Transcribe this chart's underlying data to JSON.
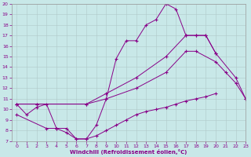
{
  "background_color": "#c8e8e8",
  "line_color": "#880088",
  "xlabel": "Windchill (Refroidissement éolien,°C)",
  "xlim": [
    -0.5,
    23
  ],
  "ylim": [
    7,
    20
  ],
  "yticks": [
    7,
    8,
    9,
    10,
    11,
    12,
    13,
    14,
    15,
    16,
    17,
    18,
    19,
    20
  ],
  "xticks": [
    0,
    1,
    2,
    3,
    4,
    5,
    6,
    7,
    8,
    9,
    10,
    11,
    12,
    13,
    14,
    15,
    16,
    17,
    18,
    19,
    20,
    21,
    22,
    23
  ],
  "series": [
    {
      "x": [
        0,
        1,
        2,
        3,
        4,
        5,
        6,
        7,
        8,
        9,
        10,
        11,
        12,
        13,
        14,
        15,
        16,
        17,
        18,
        19,
        20
      ],
      "y": [
        10.5,
        9.5,
        10.2,
        10.5,
        8.2,
        8.2,
        7.2,
        7.2,
        8.5,
        11.0,
        14.8,
        16.5,
        16.5,
        18.0,
        18.5,
        20.0,
        19.5,
        17.0,
        17.0,
        17.0,
        15.3
      ]
    },
    {
      "x": [
        0,
        2,
        7,
        9,
        12,
        15,
        17,
        18,
        19,
        20,
        22,
        23
      ],
      "y": [
        10.5,
        10.5,
        10.5,
        11.5,
        13.0,
        15.0,
        17.0,
        17.0,
        17.0,
        15.3,
        13.0,
        11.0
      ]
    },
    {
      "x": [
        0,
        2,
        7,
        9,
        12,
        15,
        17,
        18,
        20,
        21,
        22,
        23
      ],
      "y": [
        10.5,
        10.5,
        10.5,
        11.0,
        12.0,
        13.5,
        15.5,
        15.5,
        14.5,
        13.5,
        12.5,
        11.0
      ]
    },
    {
      "x": [
        0,
        1,
        2,
        3,
        4,
        5,
        6,
        7,
        8,
        9,
        10,
        11,
        12,
        13,
        14,
        15,
        16,
        17,
        18,
        19,
        20,
        21,
        22,
        23
      ],
      "y": [
        9.5,
        null,
        null,
        8.2,
        8.2,
        7.8,
        7.2,
        7.2,
        7.5,
        8.0,
        8.5,
        9.0,
        9.5,
        9.8,
        10.0,
        10.2,
        10.5,
        10.8,
        11.0,
        11.2,
        11.5,
        null,
        null,
        null
      ]
    }
  ]
}
